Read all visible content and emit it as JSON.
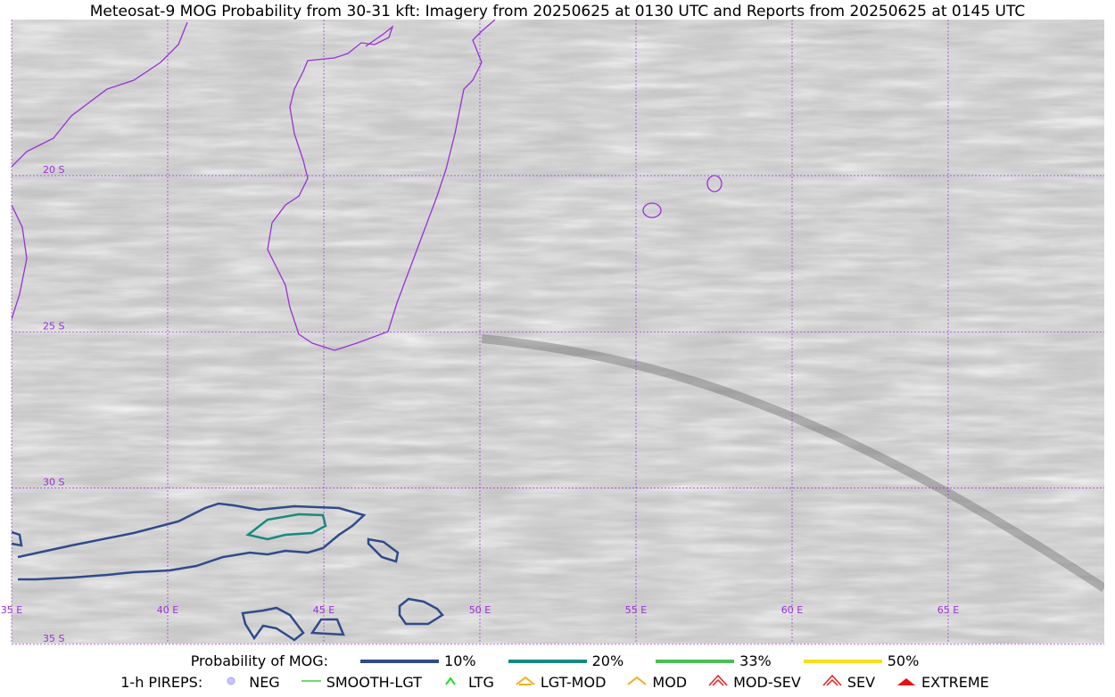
{
  "header": {
    "title": "Meteosat-9 MOG Probability from 30-31 kft: Imagery from 20250625 at 0130 UTC and Reports from 20250625 at 0145 UTC"
  },
  "map": {
    "lat_labels": [
      "20 S",
      "25 S",
      "30 S",
      "35 S"
    ],
    "lon_labels": [
      "35 E",
      "40 E",
      "45 E",
      "50 E",
      "55 E",
      "60 E",
      "65 E"
    ]
  },
  "legend": {
    "probability_title": "Probability of MOG:",
    "probability_items": [
      {
        "label": "10%",
        "color": "#2f4b8a"
      },
      {
        "label": "20%",
        "color": "#178a80"
      },
      {
        "label": "33%",
        "color": "#4cbf55"
      },
      {
        "label": "50%",
        "color": "#f6e01a"
      }
    ],
    "pirep_title": "1-h PIREPS:",
    "pirep_items": [
      "NEG",
      "SMOOTH-LGT",
      "LTG",
      "LGT-MOD",
      "MOD",
      "MOD-SEV",
      "SEV",
      "EXTREME"
    ]
  }
}
